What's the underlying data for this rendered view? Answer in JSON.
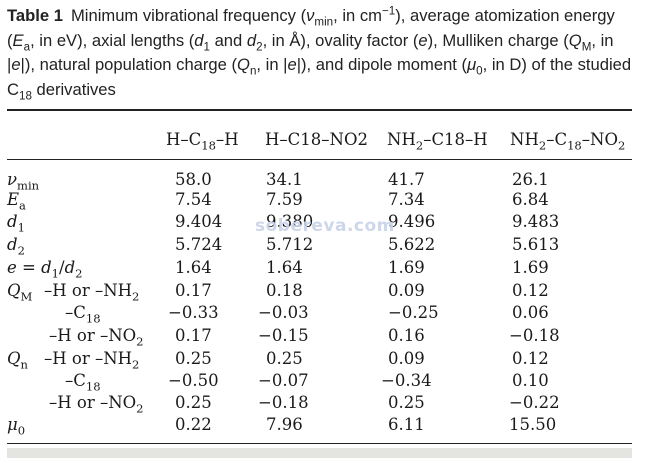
{
  "caption": {
    "label": "Table 1",
    "text": "Minimum vibrational frequency (νmin, in cm−1), average atomization energy (Ea, in eV), axial lengths (d1 and d2, in Å), ovality factor (e), Mulliken charge (QM, in |e|), natural population charge (Qn, in |e|), and dipole moment (μ0, in D) of the studied C18 derivatives"
  },
  "columns": [
    "H–C18–H",
    "H–C18–NO2",
    "NH2–C18–H",
    "NH2–C18–NO2"
  ],
  "rows": [
    {
      "label": "νmin",
      "values": [
        "58.0",
        "34.1",
        "41.7",
        "26.1"
      ]
    },
    {
      "label": "Ea",
      "values": [
        "7.54",
        "7.59",
        "7.34",
        "6.84"
      ]
    },
    {
      "label": "d1",
      "values": [
        "9.404",
        "9.380",
        "9.496",
        "9.483"
      ]
    },
    {
      "label": "d2",
      "values": [
        "5.724",
        "5.712",
        "5.622",
        "5.613"
      ]
    },
    {
      "label": "e = d1/d2",
      "values": [
        "1.64",
        "1.64",
        "1.69",
        "1.69"
      ]
    },
    {
      "label": "QM",
      "sublabel": "–H or –NH2",
      "values": [
        "0.17",
        "0.18",
        "0.09",
        "0.12"
      ]
    },
    {
      "label": "",
      "sublabel": "–C18",
      "values": [
        "−0.33",
        "−0.03",
        "−0.25",
        "0.06"
      ]
    },
    {
      "label": "",
      "sublabel": "–H or –NO2",
      "values": [
        "0.17",
        "−0.15",
        "0.16",
        "−0.18"
      ]
    },
    {
      "label": "Qn",
      "sublabel": "–H or –NH2",
      "values": [
        "0.25",
        "0.25",
        "0.09",
        "0.12"
      ]
    },
    {
      "label": "",
      "sublabel": "–C18",
      "values": [
        "−0.50",
        "−0.07",
        "−0.34",
        "0.10"
      ]
    },
    {
      "label": "",
      "sublabel": "–H or –NO2",
      "values": [
        "0.25",
        "−0.18",
        "0.25",
        "−0.22"
      ]
    },
    {
      "label": "μ0",
      "values": [
        "0.22",
        "7.96",
        "6.11",
        "15.50"
      ]
    }
  ],
  "watermark": "sobereva.com"
}
